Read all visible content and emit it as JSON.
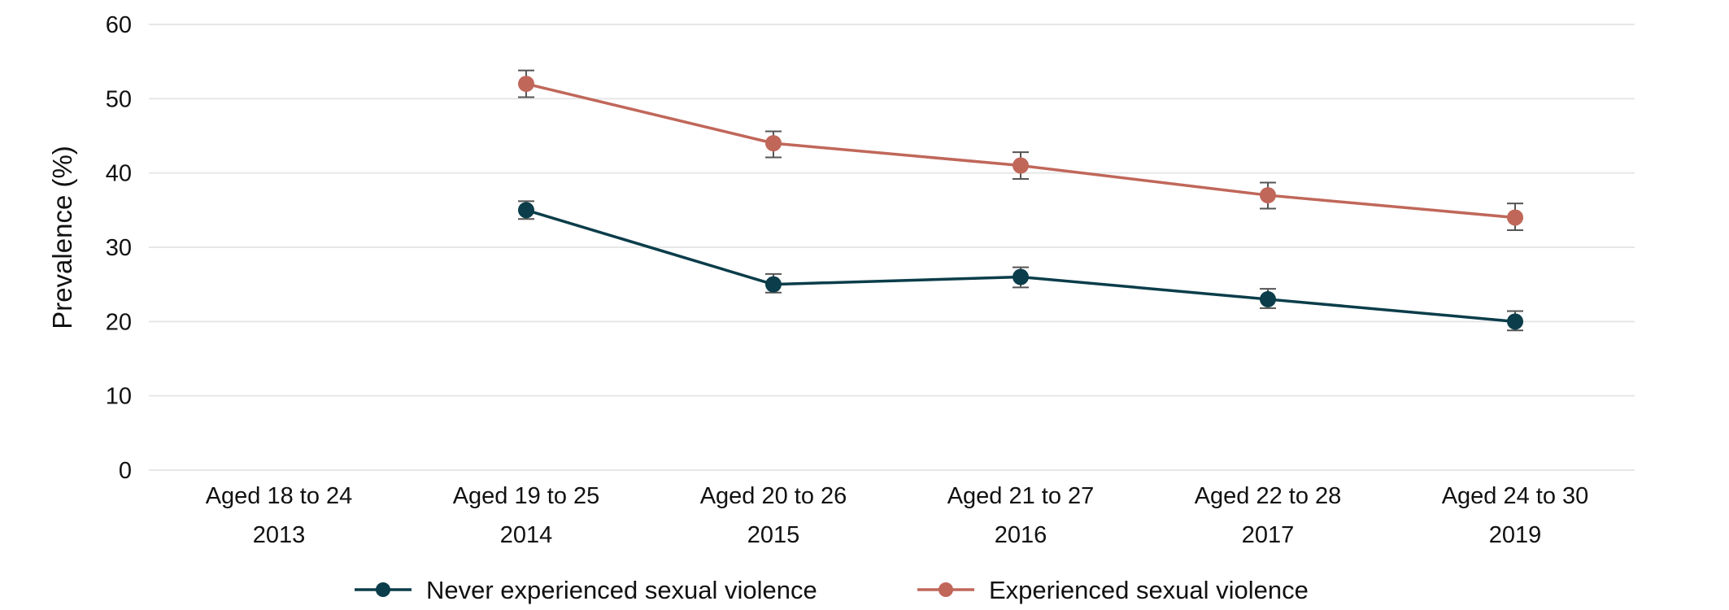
{
  "chart_data": {
    "type": "line",
    "title": "",
    "xlabel": "",
    "ylabel": "Prevalence (%)",
    "ylim": [
      0,
      60
    ],
    "yticks": [
      0,
      10,
      20,
      30,
      40,
      50,
      60
    ],
    "grid": true,
    "error_bars": true,
    "legend_position": "bottom",
    "categories": [
      {
        "line1": "Aged 18 to 24",
        "line2": "2013"
      },
      {
        "line1": "Aged 19 to 25",
        "line2": "2014"
      },
      {
        "line1": "Aged 20 to 26",
        "line2": "2015"
      },
      {
        "line1": "Aged 21 to 27",
        "line2": "2016"
      },
      {
        "line1": "Aged 22 to 28",
        "line2": "2017"
      },
      {
        "line1": "Aged 24 to 30",
        "line2": "2019"
      }
    ],
    "series": [
      {
        "name": "Never experienced sexual violence",
        "color": "#0b3d4a",
        "values": [
          null,
          35,
          25,
          26,
          23,
          20
        ],
        "lower": [
          null,
          33.8,
          23.9,
          24.6,
          21.8,
          18.8
        ],
        "upper": [
          null,
          36.2,
          26.4,
          27.3,
          24.4,
          21.4
        ]
      },
      {
        "name": "Experienced sexual violence",
        "color": "#c0675a",
        "values": [
          null,
          52,
          44,
          41,
          37,
          34
        ],
        "lower": [
          null,
          50.2,
          42.1,
          39.2,
          35.2,
          32.3
        ],
        "upper": [
          null,
          53.8,
          45.6,
          42.8,
          38.7,
          35.9
        ]
      }
    ],
    "errorbar_color": "#555555"
  }
}
